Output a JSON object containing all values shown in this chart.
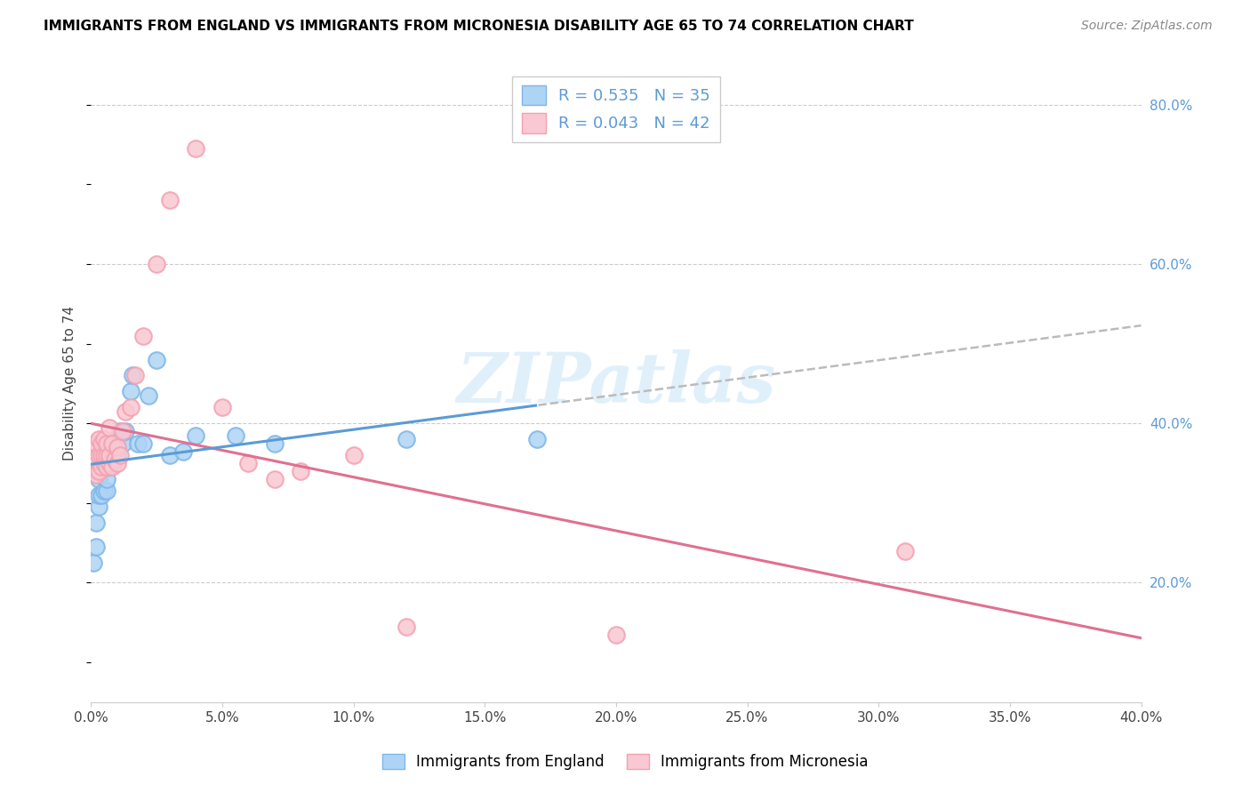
{
  "title": "IMMIGRANTS FROM ENGLAND VS IMMIGRANTS FROM MICRONESIA DISABILITY AGE 65 TO 74 CORRELATION CHART",
  "source": "Source: ZipAtlas.com",
  "ylabel": "Disability Age 65 to 74",
  "xmin": 0.0,
  "xmax": 0.4,
  "ymin": 0.05,
  "ymax": 0.85,
  "england_color_edge": "#7EB6E8",
  "england_color_fill": "#AED4F5",
  "micronesia_color_edge": "#F4A0B0",
  "micronesia_color_fill": "#F9C8D2",
  "england_R": 0.535,
  "england_N": 35,
  "micronesia_R": 0.043,
  "micronesia_N": 42,
  "england_line_color": "#5B9BD5",
  "micronesia_line_color": "#E07090",
  "trendline_ext_color": "#BBBBBB",
  "watermark": "ZIPatlas",
  "england_x": [
    0.001,
    0.002,
    0.002,
    0.003,
    0.003,
    0.003,
    0.004,
    0.004,
    0.005,
    0.005,
    0.006,
    0.006,
    0.007,
    0.007,
    0.007,
    0.008,
    0.009,
    0.01,
    0.01,
    0.011,
    0.012,
    0.013,
    0.015,
    0.016,
    0.018,
    0.02,
    0.022,
    0.025,
    0.03,
    0.035,
    0.04,
    0.055,
    0.07,
    0.12,
    0.17
  ],
  "england_y": [
    0.225,
    0.245,
    0.275,
    0.295,
    0.31,
    0.33,
    0.31,
    0.34,
    0.315,
    0.35,
    0.315,
    0.33,
    0.345,
    0.355,
    0.375,
    0.365,
    0.37,
    0.36,
    0.38,
    0.39,
    0.375,
    0.39,
    0.44,
    0.46,
    0.375,
    0.375,
    0.435,
    0.48,
    0.36,
    0.365,
    0.385,
    0.385,
    0.375,
    0.38,
    0.38
  ],
  "micronesia_x": [
    0.001,
    0.001,
    0.002,
    0.002,
    0.002,
    0.003,
    0.003,
    0.003,
    0.004,
    0.004,
    0.004,
    0.005,
    0.005,
    0.005,
    0.006,
    0.006,
    0.006,
    0.007,
    0.007,
    0.007,
    0.008,
    0.008,
    0.009,
    0.01,
    0.01,
    0.011,
    0.012,
    0.013,
    0.015,
    0.017,
    0.02,
    0.025,
    0.03,
    0.04,
    0.05,
    0.06,
    0.07,
    0.08,
    0.1,
    0.12,
    0.2,
    0.31
  ],
  "micronesia_y": [
    0.355,
    0.37,
    0.335,
    0.355,
    0.375,
    0.34,
    0.36,
    0.38,
    0.345,
    0.36,
    0.375,
    0.35,
    0.36,
    0.38,
    0.345,
    0.36,
    0.375,
    0.35,
    0.36,
    0.395,
    0.345,
    0.375,
    0.355,
    0.37,
    0.35,
    0.36,
    0.39,
    0.415,
    0.42,
    0.46,
    0.51,
    0.6,
    0.68,
    0.745,
    0.42,
    0.35,
    0.33,
    0.34,
    0.36,
    0.145,
    0.135,
    0.24
  ]
}
